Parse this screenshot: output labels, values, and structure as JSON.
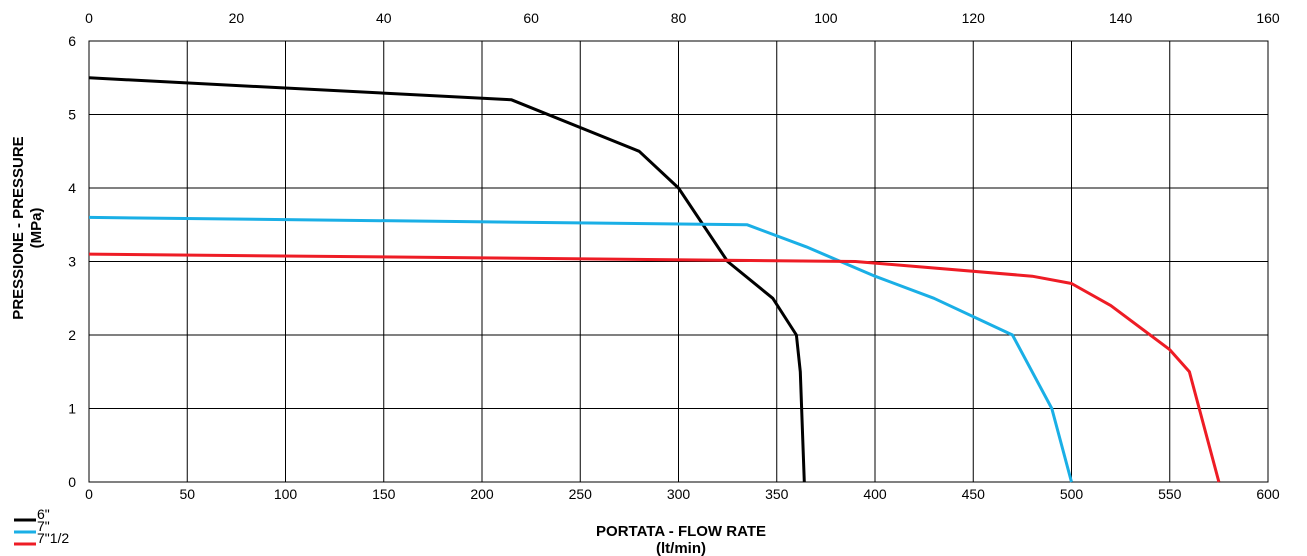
{
  "chart_data": {
    "type": "line",
    "xlabel": "PORTATA - FLOW RATE",
    "xlabel_unit": "(lt/min)",
    "ylabel": "PRESSIONE - PRESSURE",
    "ylabel_unit": "(MPa)",
    "xlim": [
      0,
      600
    ],
    "ylim": [
      0,
      6
    ],
    "x_ticks": [
      "0",
      "50",
      "100",
      "150",
      "200",
      "250",
      "300",
      "350",
      "400",
      "450",
      "500",
      "550",
      "600"
    ],
    "y_ticks": [
      "0",
      "1",
      "2",
      "3",
      "4",
      "5",
      "6"
    ],
    "secondary_x": {
      "lim": [
        0,
        160
      ],
      "ticks": [
        "0",
        "20",
        "40",
        "60",
        "80",
        "100",
        "120",
        "140",
        "160"
      ]
    },
    "grid": true,
    "legend_position": "bottom-left",
    "series": [
      {
        "name": "6\"",
        "color": "#000000",
        "points": [
          [
            0,
            5.5
          ],
          [
            215,
            5.2
          ],
          [
            280,
            4.5
          ],
          [
            300,
            4.0
          ],
          [
            325,
            3.0
          ],
          [
            348,
            2.5
          ],
          [
            360,
            2.0
          ],
          [
            362,
            1.5
          ],
          [
            364,
            0
          ]
        ]
      },
      {
        "name": "7\"",
        "color": "#1aafe6",
        "points": [
          [
            0,
            3.6
          ],
          [
            335,
            3.5
          ],
          [
            365,
            3.2
          ],
          [
            400,
            2.8
          ],
          [
            430,
            2.5
          ],
          [
            470,
            2.0
          ],
          [
            490,
            1.0
          ],
          [
            500,
            0
          ]
        ]
      },
      {
        "name": "7\"1/2",
        "color": "#ee1c25",
        "points": [
          [
            0,
            3.1
          ],
          [
            390,
            3.0
          ],
          [
            480,
            2.8
          ],
          [
            500,
            2.7
          ],
          [
            520,
            2.4
          ],
          [
            550,
            1.8
          ],
          [
            560,
            1.5
          ],
          [
            575,
            0
          ]
        ]
      }
    ]
  }
}
